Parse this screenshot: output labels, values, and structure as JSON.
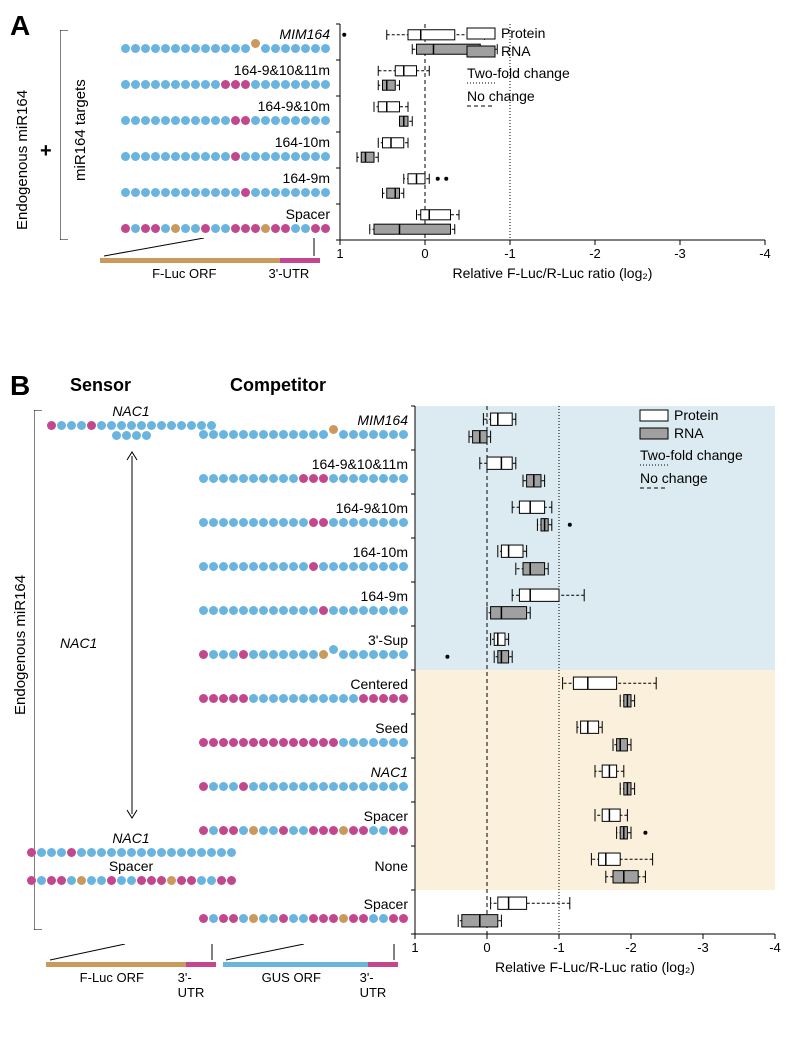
{
  "panelA": {
    "label": "A",
    "ylabel_outer": "Endogenous miR164",
    "ylabel_inner": "miR164 targets",
    "plus": "+",
    "rows": [
      {
        "name": "MIM164",
        "italic": true,
        "dots": "bbbbbbbbbbbbbobbbbbbb",
        "bulge": true
      },
      {
        "name": "164-9&10&11m",
        "italic": false,
        "dots": "bbbbbbbbbbmmmbbbbbbbb"
      },
      {
        "name": "164-9&10m",
        "italic": false,
        "dots": "bbbbbbbbbbbmmbbbbbbbb"
      },
      {
        "name": "164-10m",
        "italic": false,
        "dots": "bbbbbbbbbbbmbbbbbbbbb"
      },
      {
        "name": "164-9m",
        "italic": false,
        "dots": "bbbbbbbbbbbbmbbbbbbbb"
      },
      {
        "name": "Spacer",
        "italic": false,
        "dots": "mbmmbobbmbbmmmommbbmm"
      }
    ],
    "schematic": {
      "orf_label": "F-Luc ORF",
      "utr_label": "3'-UTR"
    },
    "xaxis": {
      "label": "Relative F-Luc/R-Luc ratio (log₂)",
      "ticks": [
        1,
        0,
        -1,
        -2,
        -3,
        -4
      ],
      "min": 1,
      "max": -4
    },
    "legend": {
      "protein": "Protein",
      "rna": "RNA",
      "twofold": "Two-fold change",
      "nochange": "No change"
    },
    "boxes": [
      {
        "row": 0,
        "type": "protein",
        "q1": -0.35,
        "med": 0.05,
        "q3": 0.2,
        "wlo": -0.7,
        "whi": 0.45,
        "outliers": [
          0.95
        ]
      },
      {
        "row": 0,
        "type": "rna",
        "q1": -0.65,
        "med": -0.1,
        "q3": 0.1,
        "wlo": -0.85,
        "whi": 0.15
      },
      {
        "row": 1,
        "type": "protein",
        "q1": 0.1,
        "med": 0.25,
        "q3": 0.35,
        "wlo": -0.05,
        "whi": 0.55
      },
      {
        "row": 1,
        "type": "rna",
        "q1": 0.35,
        "med": 0.45,
        "q3": 0.5,
        "wlo": 0.3,
        "whi": 0.55
      },
      {
        "row": 2,
        "type": "protein",
        "q1": 0.3,
        "med": 0.45,
        "q3": 0.55,
        "wlo": 0.2,
        "whi": 0.6
      },
      {
        "row": 2,
        "type": "rna",
        "q1": 0.2,
        "med": 0.25,
        "q3": 0.3,
        "wlo": 0.15,
        "whi": 0.3
      },
      {
        "row": 3,
        "type": "protein",
        "q1": 0.25,
        "med": 0.4,
        "q3": 0.5,
        "wlo": 0.2,
        "whi": 0.55
      },
      {
        "row": 3,
        "type": "rna",
        "q1": 0.6,
        "med": 0.7,
        "q3": 0.75,
        "wlo": 0.55,
        "whi": 0.8
      },
      {
        "row": 4,
        "type": "protein",
        "q1": 0.0,
        "med": 0.1,
        "q3": 0.2,
        "wlo": -0.05,
        "whi": 0.25,
        "outliers": [
          -0.15,
          -0.25
        ]
      },
      {
        "row": 4,
        "type": "rna",
        "q1": 0.3,
        "med": 0.35,
        "q3": 0.45,
        "wlo": 0.25,
        "whi": 0.5
      },
      {
        "row": 5,
        "type": "protein",
        "q1": -0.3,
        "med": -0.05,
        "q3": 0.05,
        "wlo": -0.4,
        "whi": 0.1
      },
      {
        "row": 5,
        "type": "rna",
        "q1": -0.3,
        "med": 0.3,
        "q3": 0.6,
        "wlo": -0.35,
        "whi": 0.65
      }
    ]
  },
  "panelB": {
    "label": "B",
    "ylabel": "Endogenous miR164",
    "sensor_header": "Sensor",
    "competitor_header": "Competitor",
    "sensor": {
      "top": {
        "name": "NAC1",
        "italic": true,
        "dots": "mbbbmbbbbbbbbbbbbbbbb"
      },
      "mid": {
        "name": "NAC1",
        "italic": true
      },
      "bottom": [
        {
          "name": "NAC1",
          "italic": true,
          "dots": "mbbbmbbbbbbbbbbbbbbbb"
        },
        {
          "name": "Spacer",
          "italic": false,
          "dots": "mbmmbobbmbbmmmommbbmm"
        }
      ]
    },
    "competitor_rows": [
      {
        "name": "MIM164",
        "italic": true,
        "dots": "bbbbbbbbbbbbbobbbbbbb",
        "bulge": true,
        "bg": "blue"
      },
      {
        "name": "164-9&10&11m",
        "italic": false,
        "dots": "bbbbbbbbbbmmmbbbbbbbb",
        "bg": "blue"
      },
      {
        "name": "164-9&10m",
        "italic": false,
        "dots": "bbbbbbbbbbbmmbbbbbbbb",
        "bg": "blue"
      },
      {
        "name": "164-10m",
        "italic": false,
        "dots": "bbbbbbbbbbbmbbbbbbbbb",
        "bg": "blue"
      },
      {
        "name": "164-9m",
        "italic": false,
        "dots": "bbbbbbbbbbbbmbbbbbbbb",
        "bg": "blue"
      },
      {
        "name": "3'-Sup",
        "italic": false,
        "dots": "mbbbmbbbbbbbobbbbbbbb",
        "bulge": true,
        "bg": "blue"
      },
      {
        "name": "Centered",
        "italic": false,
        "dots": "mmmmmbbbbbbbbbbbmmmmm",
        "bg": "yellow"
      },
      {
        "name": "Seed",
        "italic": false,
        "dots": "mmmmmmmmmmmmmmbbbbbbb",
        "bg": "yellow"
      },
      {
        "name": "NAC1",
        "italic": true,
        "dots": "mbbbmbbbbbbbbbbbbbbbb",
        "bg": "yellow"
      },
      {
        "name": "Spacer",
        "italic": false,
        "dots": "mbmmbobbmbbmmmommbbmm",
        "bg": "yellow"
      },
      {
        "name": "None",
        "italic": false,
        "dots": null,
        "bg": "yellow"
      },
      {
        "name": "Spacer",
        "italic": false,
        "dots": "mbmmbobbmbbmmmommbbmm",
        "bg": "white"
      }
    ],
    "schematic_left": {
      "orf_label": "F-Luc ORF",
      "utr_label": "3'-UTR"
    },
    "schematic_right": {
      "orf_label": "GUS ORF",
      "utr_label": "3'-UTR"
    },
    "xaxis": {
      "label": "Relative F-Luc/R-Luc ratio (log₂)",
      "ticks": [
        1,
        0,
        -1,
        -2,
        -3,
        -4
      ]
    },
    "legend": {
      "protein": "Protein",
      "rna": "RNA",
      "twofold": "Two-fold change",
      "nochange": "No change"
    },
    "bg_blue": "#dcebf1",
    "bg_yellow": "#faf0dc",
    "boxes": [
      {
        "row": 0,
        "type": "protein",
        "q1": -0.35,
        "med": -0.15,
        "q3": -0.05,
        "wlo": -0.4,
        "whi": 0.05
      },
      {
        "row": 0,
        "type": "rna",
        "q1": 0.0,
        "med": 0.1,
        "q3": 0.2,
        "wlo": -0.05,
        "whi": 0.25
      },
      {
        "row": 1,
        "type": "protein",
        "q1": -0.35,
        "med": -0.2,
        "q3": 0.0,
        "wlo": -0.4,
        "whi": 0.1
      },
      {
        "row": 1,
        "type": "rna",
        "q1": -0.75,
        "med": -0.65,
        "q3": -0.55,
        "wlo": -0.8,
        "whi": -0.5
      },
      {
        "row": 2,
        "type": "protein",
        "q1": -0.8,
        "med": -0.6,
        "q3": -0.45,
        "wlo": -0.9,
        "whi": -0.35
      },
      {
        "row": 2,
        "type": "rna",
        "q1": -0.85,
        "med": -0.8,
        "q3": -0.75,
        "wlo": -0.9,
        "whi": -0.7,
        "outliers": [
          -1.15
        ]
      },
      {
        "row": 3,
        "type": "protein",
        "q1": -0.5,
        "med": -0.3,
        "q3": -0.2,
        "wlo": -0.55,
        "whi": -0.15
      },
      {
        "row": 3,
        "type": "rna",
        "q1": -0.8,
        "med": -0.6,
        "q3": -0.5,
        "wlo": -0.85,
        "whi": -0.4
      },
      {
        "row": 4,
        "type": "protein",
        "q1": -1.0,
        "med": -0.6,
        "q3": -0.45,
        "wlo": -1.35,
        "whi": -0.35
      },
      {
        "row": 4,
        "type": "rna",
        "q1": -0.55,
        "med": -0.2,
        "q3": -0.05,
        "wlo": -0.6,
        "whi": 0.0
      },
      {
        "row": 5,
        "type": "protein",
        "q1": -0.25,
        "med": -0.15,
        "q3": -0.1,
        "wlo": -0.3,
        "whi": -0.05
      },
      {
        "row": 5,
        "type": "rna",
        "q1": -0.3,
        "med": -0.2,
        "q3": -0.15,
        "wlo": -0.35,
        "whi": -0.1,
        "outliers": [
          0.55
        ]
      },
      {
        "row": 6,
        "type": "protein",
        "q1": -1.8,
        "med": -1.4,
        "q3": -1.2,
        "wlo": -2.35,
        "whi": -1.05
      },
      {
        "row": 6,
        "type": "rna",
        "q1": -2.0,
        "med": -1.95,
        "q3": -1.9,
        "wlo": -2.05,
        "whi": -1.85
      },
      {
        "row": 7,
        "type": "protein",
        "q1": -1.55,
        "med": -1.4,
        "q3": -1.3,
        "wlo": -1.6,
        "whi": -1.25
      },
      {
        "row": 7,
        "type": "rna",
        "q1": -1.95,
        "med": -1.85,
        "q3": -1.8,
        "wlo": -2.0,
        "whi": -1.75
      },
      {
        "row": 8,
        "type": "protein",
        "q1": -1.8,
        "med": -1.7,
        "q3": -1.6,
        "wlo": -1.9,
        "whi": -1.5
      },
      {
        "row": 8,
        "type": "rna",
        "q1": -2.0,
        "med": -1.95,
        "q3": -1.9,
        "wlo": -2.05,
        "whi": -1.85
      },
      {
        "row": 9,
        "type": "protein",
        "q1": -1.85,
        "med": -1.7,
        "q3": -1.6,
        "wlo": -1.95,
        "whi": -1.5
      },
      {
        "row": 9,
        "type": "rna",
        "q1": -1.95,
        "med": -1.9,
        "q3": -1.85,
        "wlo": -2.0,
        "whi": -1.8,
        "outliers": [
          -2.2
        ]
      },
      {
        "row": 10,
        "type": "protein",
        "q1": -1.85,
        "med": -1.65,
        "q3": -1.55,
        "wlo": -2.3,
        "whi": -1.45
      },
      {
        "row": 10,
        "type": "rna",
        "q1": -2.1,
        "med": -1.9,
        "q3": -1.75,
        "wlo": -2.2,
        "whi": -1.65
      },
      {
        "row": 11,
        "type": "protein",
        "q1": -0.55,
        "med": -0.3,
        "q3": -0.15,
        "wlo": -1.15,
        "whi": -0.05
      },
      {
        "row": 11,
        "type": "rna",
        "q1": -0.15,
        "med": 0.1,
        "q3": 0.35,
        "wlo": -0.2,
        "whi": 0.4
      }
    ]
  }
}
